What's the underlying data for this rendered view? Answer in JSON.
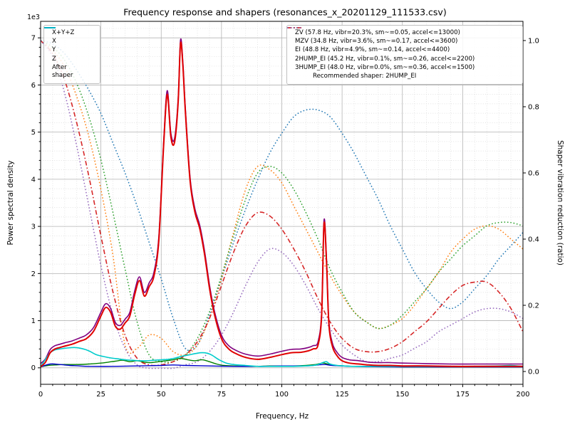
{
  "title": "Frequency response and shapers (resonances_x_20201129_111533.csv)",
  "chart_data": {
    "type": "line",
    "title": "Frequency response and shapers (resonances_x_20201129_111533.csv)",
    "xlabel": "Frequency, Hz",
    "ylabel_left": "Power spectral density",
    "ylabel_right": "Shaper vibration reduction (ratio)",
    "y_left_multiplier": "1e3",
    "xlim": [
      0,
      200
    ],
    "ylim_left": [
      -0.35,
      7.35
    ],
    "ylim_right": [
      -0.0387,
      1.058
    ],
    "x_major_ticks": [
      0,
      25,
      50,
      75,
      100,
      125,
      150,
      175,
      200
    ],
    "x_minor_step": 5,
    "y_left_ticks": [
      0,
      1,
      2,
      3,
      4,
      5,
      6,
      7
    ],
    "y_left_minor_step": 0.2,
    "y_right_ticks": [
      0.0,
      0.2,
      0.4,
      0.6,
      0.8,
      1.0
    ],
    "grid": true,
    "legend_left_title": null,
    "recommended_note": "Recommended shaper: 2HUMP_EI",
    "psd_series": [
      {
        "name": "X+Y+Z",
        "color": "#800080",
        "style": "solid",
        "width": 1.6,
        "axis": "left",
        "x": [
          0,
          2,
          4,
          6,
          8,
          10,
          13,
          16,
          19,
          22,
          25,
          27,
          29,
          31,
          33,
          35,
          37,
          39,
          41,
          43,
          45,
          47,
          49,
          51,
          52.5,
          54,
          55.5,
          57,
          58,
          59,
          60,
          62,
          64,
          66,
          68,
          70,
          72,
          75,
          78,
          81,
          85,
          90,
          95,
          100,
          104,
          108,
          111,
          113,
          115,
          116.5,
          117.5,
          118.5,
          119.5,
          121,
          123,
          125,
          128,
          132,
          136,
          140,
          145,
          150,
          160,
          170,
          180,
          190,
          200
        ],
        "y": [
          0.09,
          0.19,
          0.39,
          0.47,
          0.5,
          0.53,
          0.57,
          0.63,
          0.7,
          0.86,
          1.18,
          1.36,
          1.26,
          0.96,
          0.9,
          1.03,
          1.18,
          1.63,
          1.93,
          1.6,
          1.8,
          2.03,
          2.78,
          4.78,
          5.88,
          4.98,
          4.86,
          5.68,
          6.95,
          6.48,
          5.52,
          4.02,
          3.37,
          3.02,
          2.47,
          1.77,
          1.22,
          0.69,
          0.47,
          0.37,
          0.29,
          0.25,
          0.29,
          0.35,
          0.39,
          0.4,
          0.43,
          0.47,
          0.55,
          1.17,
          3.12,
          2.37,
          1.02,
          0.52,
          0.32,
          0.22,
          0.17,
          0.15,
          0.12,
          0.11,
          0.11,
          0.1,
          0.09,
          0.08,
          0.08,
          0.08,
          0.08
        ]
      },
      {
        "name": "Y",
        "color": "#008000",
        "style": "solid",
        "width": 1.4,
        "axis": "left",
        "x": [
          0,
          3,
          6,
          10,
          15,
          20,
          25,
          28,
          31,
          34,
          37,
          40,
          43,
          46,
          49,
          52,
          55,
          58,
          61,
          64,
          67,
          70,
          73,
          76,
          80,
          85,
          90,
          95,
          100,
          105,
          110,
          114,
          117,
          119,
          122,
          126,
          130,
          140,
          150,
          160,
          170,
          180,
          190,
          200
        ],
        "y": [
          0.02,
          0.05,
          0.06,
          0.07,
          0.07,
          0.08,
          0.1,
          0.12,
          0.14,
          0.16,
          0.13,
          0.15,
          0.12,
          0.11,
          0.13,
          0.15,
          0.17,
          0.2,
          0.17,
          0.15,
          0.17,
          0.13,
          0.08,
          0.05,
          0.04,
          0.03,
          0.03,
          0.04,
          0.04,
          0.04,
          0.05,
          0.07,
          0.1,
          0.08,
          0.05,
          0.04,
          0.03,
          0.03,
          0.02,
          0.02,
          0.02,
          0.02,
          0.02,
          0.02
        ]
      },
      {
        "name": "Z",
        "color": "#0000cc",
        "style": "solid",
        "width": 1.4,
        "axis": "left",
        "x": [
          0,
          4,
          8,
          12,
          16,
          20,
          30,
          40,
          50,
          55,
          60,
          70,
          80,
          90,
          100,
          110,
          115,
          118,
          121,
          130,
          150,
          170,
          200
        ],
        "y": [
          0.02,
          0.08,
          0.07,
          0.05,
          0.04,
          0.03,
          0.03,
          0.04,
          0.05,
          0.06,
          0.05,
          0.04,
          0.03,
          0.03,
          0.04,
          0.04,
          0.06,
          0.07,
          0.05,
          0.03,
          0.02,
          0.02,
          0.02
        ]
      },
      {
        "name": "After shaper",
        "color": "#00cccc",
        "style": "solid",
        "width": 1.6,
        "axis": "left",
        "x": [
          0,
          2,
          4,
          6,
          8,
          11,
          14,
          17,
          20,
          23,
          26,
          29,
          32,
          35,
          38,
          41,
          44,
          47,
          50,
          53,
          56,
          59,
          62,
          65,
          67,
          69,
          71,
          74,
          77,
          80,
          85,
          90,
          95,
          100,
          105,
          110,
          113,
          115,
          117,
          118.5,
          120,
          123,
          126,
          130,
          140,
          150,
          160,
          170,
          180,
          190,
          195,
          200
        ],
        "y": [
          0.02,
          0.18,
          0.32,
          0.38,
          0.4,
          0.42,
          0.43,
          0.41,
          0.36,
          0.28,
          0.24,
          0.21,
          0.19,
          0.17,
          0.16,
          0.15,
          0.15,
          0.16,
          0.17,
          0.18,
          0.21,
          0.25,
          0.28,
          0.31,
          0.32,
          0.31,
          0.27,
          0.17,
          0.1,
          0.07,
          0.05,
          0.03,
          0.03,
          0.03,
          0.03,
          0.04,
          0.05,
          0.07,
          0.11,
          0.13,
          0.08,
          0.05,
          0.04,
          0.03,
          0.03,
          0.03,
          0.03,
          0.03,
          0.03,
          0.04,
          0.05,
          0.03
        ]
      },
      {
        "name": "X",
        "color": "#e00000",
        "style": "solid",
        "width": 2.0,
        "axis": "left",
        "x": [
          0,
          2,
          4,
          6,
          8,
          10,
          13,
          16,
          19,
          22,
          25,
          27,
          29,
          31,
          33,
          35,
          37,
          39,
          41,
          43,
          45,
          47,
          49,
          51,
          52.5,
          54,
          55.5,
          57,
          58,
          59,
          60,
          62,
          64,
          66,
          68,
          70,
          72,
          75,
          78,
          81,
          85,
          90,
          95,
          100,
          104,
          108,
          111,
          113,
          115,
          116.5,
          117.5,
          118.5,
          119.5,
          121,
          123,
          125,
          128,
          132,
          136,
          140,
          145,
          150,
          160,
          170,
          180,
          190,
          200
        ],
        "y": [
          0.02,
          0.12,
          0.32,
          0.4,
          0.43,
          0.46,
          0.5,
          0.56,
          0.62,
          0.78,
          1.1,
          1.28,
          1.18,
          0.88,
          0.82,
          0.95,
          1.1,
          1.55,
          1.85,
          1.52,
          1.72,
          1.95,
          2.7,
          4.7,
          5.8,
          4.9,
          4.78,
          5.6,
          6.88,
          6.4,
          5.45,
          3.95,
          3.3,
          2.95,
          2.4,
          1.7,
          1.15,
          0.62,
          0.4,
          0.3,
          0.22,
          0.18,
          0.22,
          0.28,
          0.32,
          0.33,
          0.36,
          0.4,
          0.48,
          1.1,
          3.05,
          2.3,
          0.95,
          0.45,
          0.25,
          0.15,
          0.1,
          0.08,
          0.06,
          0.05,
          0.05,
          0.04,
          0.04,
          0.03,
          0.03,
          0.03,
          0.03
        ]
      }
    ],
    "shaper_series": [
      {
        "name": "ZV",
        "label": "ZV (57.8 Hz, vibr=20.3%, sm~=0.05, accel<=13000)",
        "color": "#1f77b4",
        "style": "dotted",
        "width": 1.5,
        "axis": "right",
        "x": [
          0,
          5,
          10,
          15,
          20,
          25,
          30,
          35,
          40,
          45,
          50,
          55,
          60,
          65,
          70,
          75,
          80,
          85,
          90,
          95,
          100,
          105,
          110,
          115,
          120,
          125,
          130,
          135,
          140,
          145,
          150,
          155,
          160,
          165,
          170,
          175,
          180,
          185,
          190,
          195,
          200
        ],
        "y": [
          1.0,
          0.99,
          0.96,
          0.91,
          0.85,
          0.78,
          0.69,
          0.6,
          0.5,
          0.39,
          0.28,
          0.16,
          0.07,
          0.08,
          0.17,
          0.28,
          0.39,
          0.49,
          0.58,
          0.66,
          0.72,
          0.77,
          0.79,
          0.79,
          0.77,
          0.72,
          0.66,
          0.59,
          0.52,
          0.44,
          0.37,
          0.3,
          0.25,
          0.21,
          0.19,
          0.21,
          0.25,
          0.29,
          0.34,
          0.38,
          0.42
        ]
      },
      {
        "name": "MZV",
        "label": "MZV (34.8 Hz, vibr=3.6%, sm~=0.17, accel<=3600)",
        "color": "#ff7f0e",
        "style": "dotted",
        "width": 1.5,
        "axis": "right",
        "x": [
          0,
          5,
          10,
          15,
          20,
          25,
          30,
          35,
          40,
          45,
          50,
          55,
          60,
          65,
          70,
          75,
          80,
          85,
          90,
          95,
          100,
          105,
          110,
          115,
          120,
          125,
          130,
          135,
          140,
          145,
          150,
          155,
          160,
          165,
          170,
          175,
          180,
          185,
          190,
          195,
          200
        ],
        "y": [
          1.0,
          0.97,
          0.92,
          0.83,
          0.71,
          0.55,
          0.35,
          0.08,
          0.07,
          0.11,
          0.1,
          0.06,
          0.05,
          0.08,
          0.16,
          0.28,
          0.42,
          0.55,
          0.62,
          0.61,
          0.57,
          0.5,
          0.43,
          0.36,
          0.29,
          0.23,
          0.18,
          0.15,
          0.13,
          0.14,
          0.16,
          0.2,
          0.25,
          0.3,
          0.36,
          0.4,
          0.43,
          0.44,
          0.43,
          0.4,
          0.37
        ]
      },
      {
        "name": "EI",
        "label": "EI (48.8 Hz, vibr=4.9%, sm~=0.14, accel<=4400)",
        "color": "#2ca02c",
        "style": "dotted",
        "width": 1.5,
        "axis": "right",
        "x": [
          0,
          5,
          10,
          15,
          20,
          25,
          30,
          35,
          40,
          45,
          50,
          55,
          60,
          65,
          70,
          75,
          80,
          85,
          90,
          95,
          100,
          105,
          110,
          115,
          120,
          125,
          130,
          135,
          140,
          145,
          150,
          155,
          160,
          165,
          170,
          175,
          180,
          185,
          190,
          195,
          200
        ],
        "y": [
          1.0,
          0.98,
          0.94,
          0.87,
          0.77,
          0.64,
          0.48,
          0.31,
          0.15,
          0.05,
          0.03,
          0.03,
          0.05,
          0.1,
          0.18,
          0.29,
          0.41,
          0.52,
          0.6,
          0.62,
          0.6,
          0.55,
          0.48,
          0.4,
          0.31,
          0.24,
          0.18,
          0.15,
          0.13,
          0.14,
          0.17,
          0.21,
          0.25,
          0.3,
          0.34,
          0.38,
          0.41,
          0.44,
          0.45,
          0.45,
          0.44
        ]
      },
      {
        "name": "2HUMP_EI",
        "label": "2HUMP_EI (45.2 Hz, vibr=0.1%, sm~=0.26, accel<=2200)",
        "color": "#d62728",
        "style": "dashdot",
        "width": 1.6,
        "axis": "right",
        "x": [
          0,
          5,
          10,
          15,
          20,
          25,
          30,
          35,
          40,
          45,
          50,
          55,
          60,
          65,
          70,
          75,
          80,
          85,
          90,
          95,
          100,
          105,
          110,
          115,
          120,
          125,
          130,
          135,
          140,
          145,
          150,
          155,
          160,
          165,
          170,
          175,
          180,
          185,
          190,
          195,
          200
        ],
        "y": [
          1.0,
          0.96,
          0.88,
          0.75,
          0.59,
          0.41,
          0.24,
          0.11,
          0.04,
          0.02,
          0.02,
          0.03,
          0.05,
          0.09,
          0.16,
          0.26,
          0.36,
          0.44,
          0.48,
          0.47,
          0.43,
          0.37,
          0.3,
          0.22,
          0.15,
          0.1,
          0.07,
          0.06,
          0.06,
          0.07,
          0.09,
          0.12,
          0.15,
          0.19,
          0.23,
          0.26,
          0.27,
          0.27,
          0.24,
          0.19,
          0.12
        ]
      },
      {
        "name": "3HUMP_EI",
        "label": "3HUMP_EI (48.0 Hz, vibr=0.0%, sm~=0.36, accel<=1500)",
        "color": "#9467bd",
        "style": "dotted",
        "width": 1.5,
        "axis": "right",
        "x": [
          0,
          5,
          10,
          15,
          20,
          25,
          30,
          35,
          40,
          45,
          50,
          55,
          60,
          65,
          70,
          75,
          80,
          85,
          90,
          95,
          100,
          105,
          110,
          115,
          120,
          125,
          130,
          135,
          140,
          145,
          150,
          155,
          160,
          165,
          170,
          175,
          180,
          185,
          190,
          195,
          200
        ],
        "y": [
          1.0,
          0.95,
          0.84,
          0.68,
          0.5,
          0.32,
          0.17,
          0.07,
          0.02,
          0.01,
          0.01,
          0.01,
          0.02,
          0.03,
          0.06,
          0.11,
          0.18,
          0.26,
          0.33,
          0.37,
          0.36,
          0.32,
          0.26,
          0.19,
          0.13,
          0.08,
          0.05,
          0.03,
          0.03,
          0.04,
          0.05,
          0.07,
          0.09,
          0.12,
          0.14,
          0.16,
          0.18,
          0.19,
          0.19,
          0.18,
          0.16
        ]
      }
    ],
    "legend_left": [
      {
        "label": "X+Y+Z",
        "color": "#800080",
        "style": "solid"
      },
      {
        "label": "X",
        "color": "#e00000",
        "style": "solid"
      },
      {
        "label": "Y",
        "color": "#008000",
        "style": "solid"
      },
      {
        "label": "Z",
        "color": "#0000cc",
        "style": "solid"
      },
      {
        "label": "After shaper",
        "color": "#00cccc",
        "style": "solid"
      }
    ]
  }
}
